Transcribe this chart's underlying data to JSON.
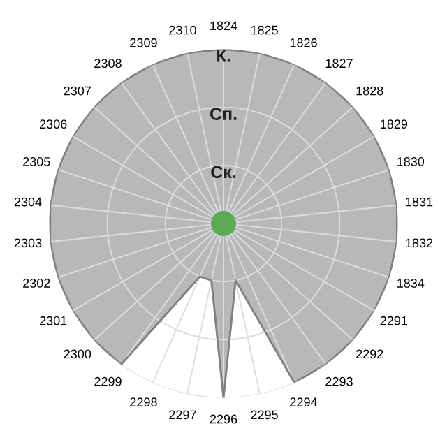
{
  "chart_data": {
    "type": "radar",
    "categories": [
      "1824",
      "1825",
      "1826",
      "1827",
      "1828",
      "1829",
      "1830",
      "1831",
      "1832",
      "1834",
      "2291",
      "2292",
      "2293",
      "2294",
      "2295",
      "2296",
      "2297",
      "2298",
      "2299",
      "2300",
      "2301",
      "2302",
      "2303",
      "2304",
      "2305",
      "2306",
      "2307",
      "2308",
      "2309",
      "2310"
    ],
    "series": [
      {
        "color": "#b8b8b8",
        "values": [
          3,
          3,
          3,
          3,
          3,
          3,
          3,
          3,
          3,
          3,
          3,
          3,
          3,
          3,
          1,
          3,
          1,
          1,
          3,
          3,
          3,
          3,
          3,
          3,
          3,
          3,
          3,
          3,
          3,
          3
        ]
      }
    ],
    "ylim": [
      0,
      3
    ],
    "yticks": [
      {
        "value": 1,
        "label": "Ск."
      },
      {
        "value": 2,
        "label": "Сп."
      },
      {
        "value": 3,
        "label": "К."
      }
    ],
    "grid": true,
    "legend": false
  }
}
